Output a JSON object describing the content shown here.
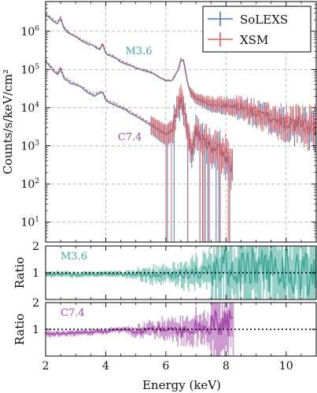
{
  "chart_data": {
    "type": "line",
    "x_axis": {
      "label": "Energy (keV)",
      "lim": [
        2,
        11
      ],
      "major_ticks": [
        2,
        4,
        6,
        8,
        10
      ],
      "tick_labels": [
        "2",
        "4",
        "6",
        "8",
        "10"
      ],
      "minor_step": 0.5
    },
    "panels": [
      {
        "id": "spectrum",
        "ylabel": "Counts/s/keV/cm²",
        "yscale": "log",
        "ylim": [
          3,
          6000000
        ],
        "y_ticks": [
          10,
          100,
          1000,
          10000,
          100000,
          1000000
        ],
        "y_tick_exponents": [
          "1",
          "2",
          "3",
          "4",
          "5",
          "6"
        ],
        "grid": true,
        "legend": {
          "placement": "top-right",
          "entries": [
            {
              "name": "SoLEXS",
              "color": "#4c72b0"
            },
            {
              "name": "XSM",
              "color": "#dd5e5e"
            }
          ]
        },
        "annotations": [
          {
            "text": "M3.6",
            "color": "#40a998",
            "at_x": 5.1,
            "at_y": 250000
          },
          {
            "text": "C7.4",
            "color": "#a54aaa",
            "at_x": 4.8,
            "at_y": 1400
          }
        ],
        "series": [
          {
            "name": "SoLEXS",
            "flare": "M3.6",
            "color": "#4c72b0",
            "x": [
              2.0,
              2.1,
              2.2,
              2.3,
              2.4,
              2.5,
              2.6,
              2.7,
              2.8,
              3.0,
              3.2,
              3.4,
              3.6,
              3.8,
              3.9,
              4.0,
              4.2,
              4.5,
              5.0,
              5.5,
              6.0,
              6.2,
              6.4,
              6.5,
              6.6,
              6.7,
              6.8,
              7.0,
              7.5,
              8.0,
              8.5,
              9.0,
              9.5,
              10.0,
              10.5,
              11.0
            ],
            "y": [
              2600000,
              2400000,
              2000000,
              1700000,
              1600000,
              2200000,
              1200000,
              1000000,
              850000,
              720000,
              560000,
              470000,
              420000,
              330000,
              480000,
              260000,
              220000,
              160000,
              110000,
              82000,
              50000,
              50000,
              90000,
              180000,
              160000,
              52000,
              26000,
              17000,
              12000,
              11000,
              10000,
              7000,
              5300,
              4000,
              3400,
              2800
            ]
          },
          {
            "name": "XSM",
            "flare": "M3.6",
            "color": "#dd5e5e",
            "x": [
              2.0,
              2.1,
              2.2,
              2.3,
              2.4,
              2.5,
              2.6,
              2.7,
              2.8,
              3.0,
              3.2,
              3.4,
              3.6,
              3.8,
              3.9,
              4.0,
              4.2,
              4.5,
              5.0,
              5.5,
              6.0,
              6.2,
              6.4,
              6.5,
              6.6,
              6.7,
              6.8,
              7.0,
              7.5,
              8.0,
              8.5,
              9.0,
              9.5,
              10.0,
              10.5,
              11.0
            ],
            "y": [
              2900000,
              2600000,
              2200000,
              1900000,
              1750000,
              2400000,
              1300000,
              1100000,
              900000,
              760000,
              600000,
              500000,
              440000,
              350000,
              500000,
              280000,
              235000,
              170000,
              115000,
              86000,
              52000,
              52000,
              95000,
              200000,
              170000,
              56000,
              28000,
              18500,
              13000,
              12000,
              11000,
              7500,
              5500,
              4200,
              3500,
              3000
            ]
          },
          {
            "name": "SoLEXS",
            "flare": "C7.4",
            "color": "#4c72b0",
            "x": [
              2.0,
              2.1,
              2.2,
              2.4,
              2.5,
              2.6,
              2.8,
              3.0,
              3.2,
              3.4,
              3.6,
              3.9,
              4.0,
              4.5,
              5.0,
              5.5,
              6.0,
              6.2,
              6.3,
              6.5,
              6.6,
              6.7,
              6.8,
              6.9,
              7.0,
              7.2,
              7.5,
              7.8,
              8.0,
              8.2
            ],
            "y": [
              160000,
              130000,
              105000,
              70000,
              110000,
              60000,
              45000,
              40000,
              33000,
              25000,
              20000,
              26000,
              15000,
              10000,
              6000,
              3500,
              1900,
              2500,
              6000,
              15000,
              9000,
              3500,
              900,
              700,
              2500,
              1400,
              900,
              800,
              500,
              300
            ]
          },
          {
            "name": "XSM",
            "flare": "C7.4",
            "color": "#dd5e5e",
            "x": [
              2.0,
              2.1,
              2.2,
              2.4,
              2.5,
              2.6,
              2.8,
              3.0,
              3.2,
              3.4,
              3.6,
              3.9,
              4.0,
              4.5,
              5.0,
              5.5,
              6.0,
              6.2,
              6.3,
              6.5,
              6.6,
              6.7,
              6.8,
              6.9,
              7.0,
              7.2,
              7.5,
              7.8,
              8.0,
              8.2
            ],
            "y": [
              180000,
              145000,
              115000,
              78000,
              120000,
              66000,
              50000,
              43000,
              36000,
              27000,
              22000,
              28000,
              16500,
              11000,
              6600,
              3900,
              2100,
              2700,
              6500,
              16000,
              9600,
              3800,
              1000,
              800,
              2700,
              1500,
              1000,
              900,
              600,
              350
            ]
          }
        ]
      },
      {
        "id": "ratio-m36",
        "ylabel": "Ratio",
        "label": "M3.6",
        "color": "#40a998",
        "ylim": [
          0,
          2
        ],
        "y_ticks": [
          1,
          2
        ],
        "reference_line": 1,
        "x": [
          2.0,
          2.5,
          3.0,
          3.5,
          4.0,
          4.5,
          5.0,
          5.5,
          6.0,
          6.5,
          7.0,
          7.5,
          7.8,
          8.0,
          8.5,
          9.0,
          9.5,
          10.0,
          10.5,
          11.0
        ],
        "y": [
          0.92,
          0.95,
          0.93,
          0.95,
          0.96,
          0.94,
          0.95,
          0.96,
          0.97,
          0.96,
          1.0,
          1.05,
          1.15,
          1.2,
          1.05,
          1.25,
          1.1,
          1.15,
          1.05,
          1.0
        ]
      },
      {
        "id": "ratio-c74",
        "ylabel": "Ratio",
        "label": "C7.4",
        "color": "#a54aaa",
        "ylim": [
          0,
          2
        ],
        "y_ticks": [
          1,
          2
        ],
        "reference_line": 1,
        "x": [
          2.0,
          2.5,
          3.0,
          3.5,
          4.0,
          4.5,
          5.0,
          5.5,
          6.0,
          6.5,
          7.0,
          7.5,
          8.0,
          8.2
        ],
        "y": [
          0.82,
          0.85,
          0.88,
          0.9,
          0.92,
          1.0,
          0.9,
          1.0,
          1.05,
          0.9,
          1.1,
          1.0,
          1.15,
          1.1
        ]
      }
    ]
  }
}
